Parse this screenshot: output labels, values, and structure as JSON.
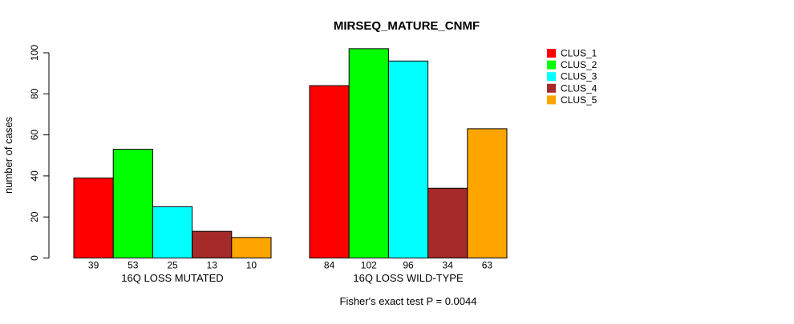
{
  "chart_data": {
    "type": "bar",
    "title": "MIRSEQ_MATURE_CNMF",
    "ylabel": "number of cases",
    "xlabel": "",
    "categories": [
      "16Q LOSS MUTATED",
      "16Q LOSS WILD-TYPE"
    ],
    "series": [
      {
        "name": "CLUS_1",
        "color": "#FF0000",
        "values": [
          39,
          84
        ]
      },
      {
        "name": "CLUS_2",
        "color": "#00FF00",
        "values": [
          53,
          102
        ]
      },
      {
        "name": "CLUS_3",
        "color": "#00FFFF",
        "values": [
          25,
          96
        ]
      },
      {
        "name": "CLUS_4",
        "color": "#A52A2A",
        "values": [
          13,
          34
        ]
      },
      {
        "name": "CLUS_5",
        "color": "#FFA500",
        "values": [
          10,
          63
        ]
      }
    ],
    "yticks": [
      0,
      20,
      40,
      60,
      80,
      100
    ],
    "ylim": [
      0,
      105
    ],
    "grid": false,
    "legend_position": "right",
    "value_labels_shown": true,
    "annotation": "Fisher's exact test P = 0.0044",
    "bar_border_color": "#000000",
    "text_color": "#000000"
  }
}
